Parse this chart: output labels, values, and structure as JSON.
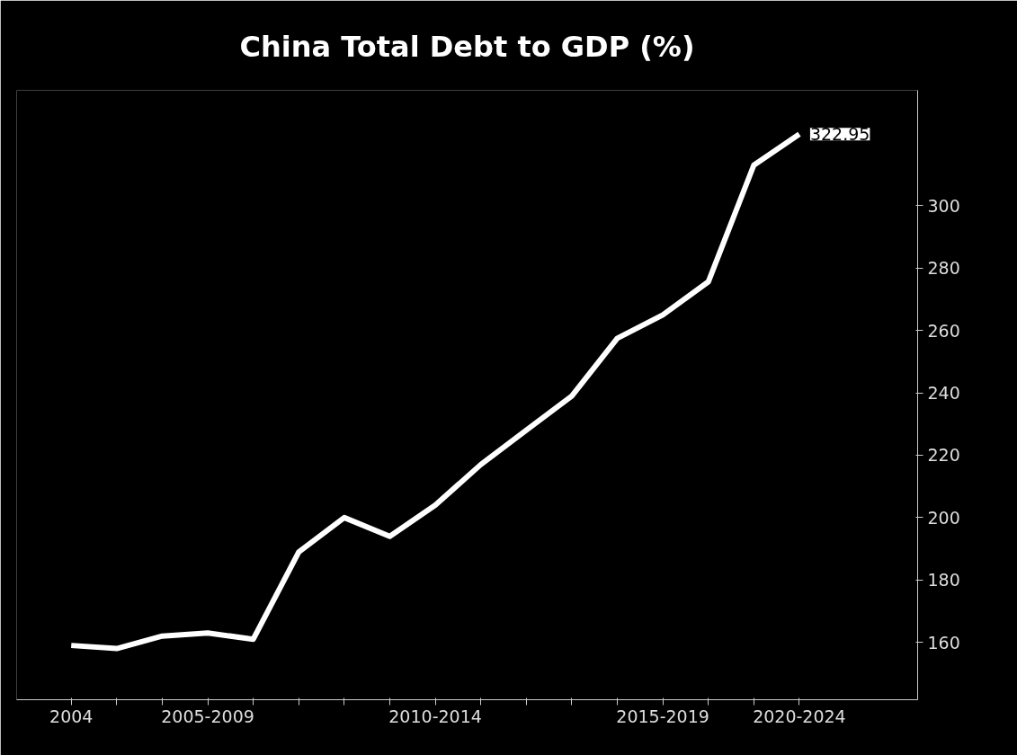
{
  "chart_data": {
    "type": "line",
    "title": "China Total Debt to GDP (%)",
    "categories": [
      "2004",
      null,
      null,
      "2005-2009",
      null,
      null,
      null,
      null,
      "2010-2014",
      null,
      null,
      null,
      null,
      "2015-2019",
      null,
      null,
      "2020-2024"
    ],
    "series": [
      {
        "color": "#ffffff",
        "values": [
          159,
          158,
          162,
          163,
          161,
          189,
          200,
          194,
          204,
          217,
          228,
          239,
          257.5,
          265,
          275.6,
          313,
          322.95
        ],
        "value_labels": [
          null,
          null,
          null,
          null,
          null,
          null,
          null,
          null,
          null,
          null,
          null,
          null,
          null,
          null,
          null,
          null,
          "322.95"
        ]
      }
    ],
    "ylim": [
      141.6,
      337
    ],
    "yticks": [
      160,
      180,
      200,
      220,
      240,
      260,
      280,
      300
    ],
    "grid": false,
    "marker": "none",
    "line_style": "solid"
  }
}
